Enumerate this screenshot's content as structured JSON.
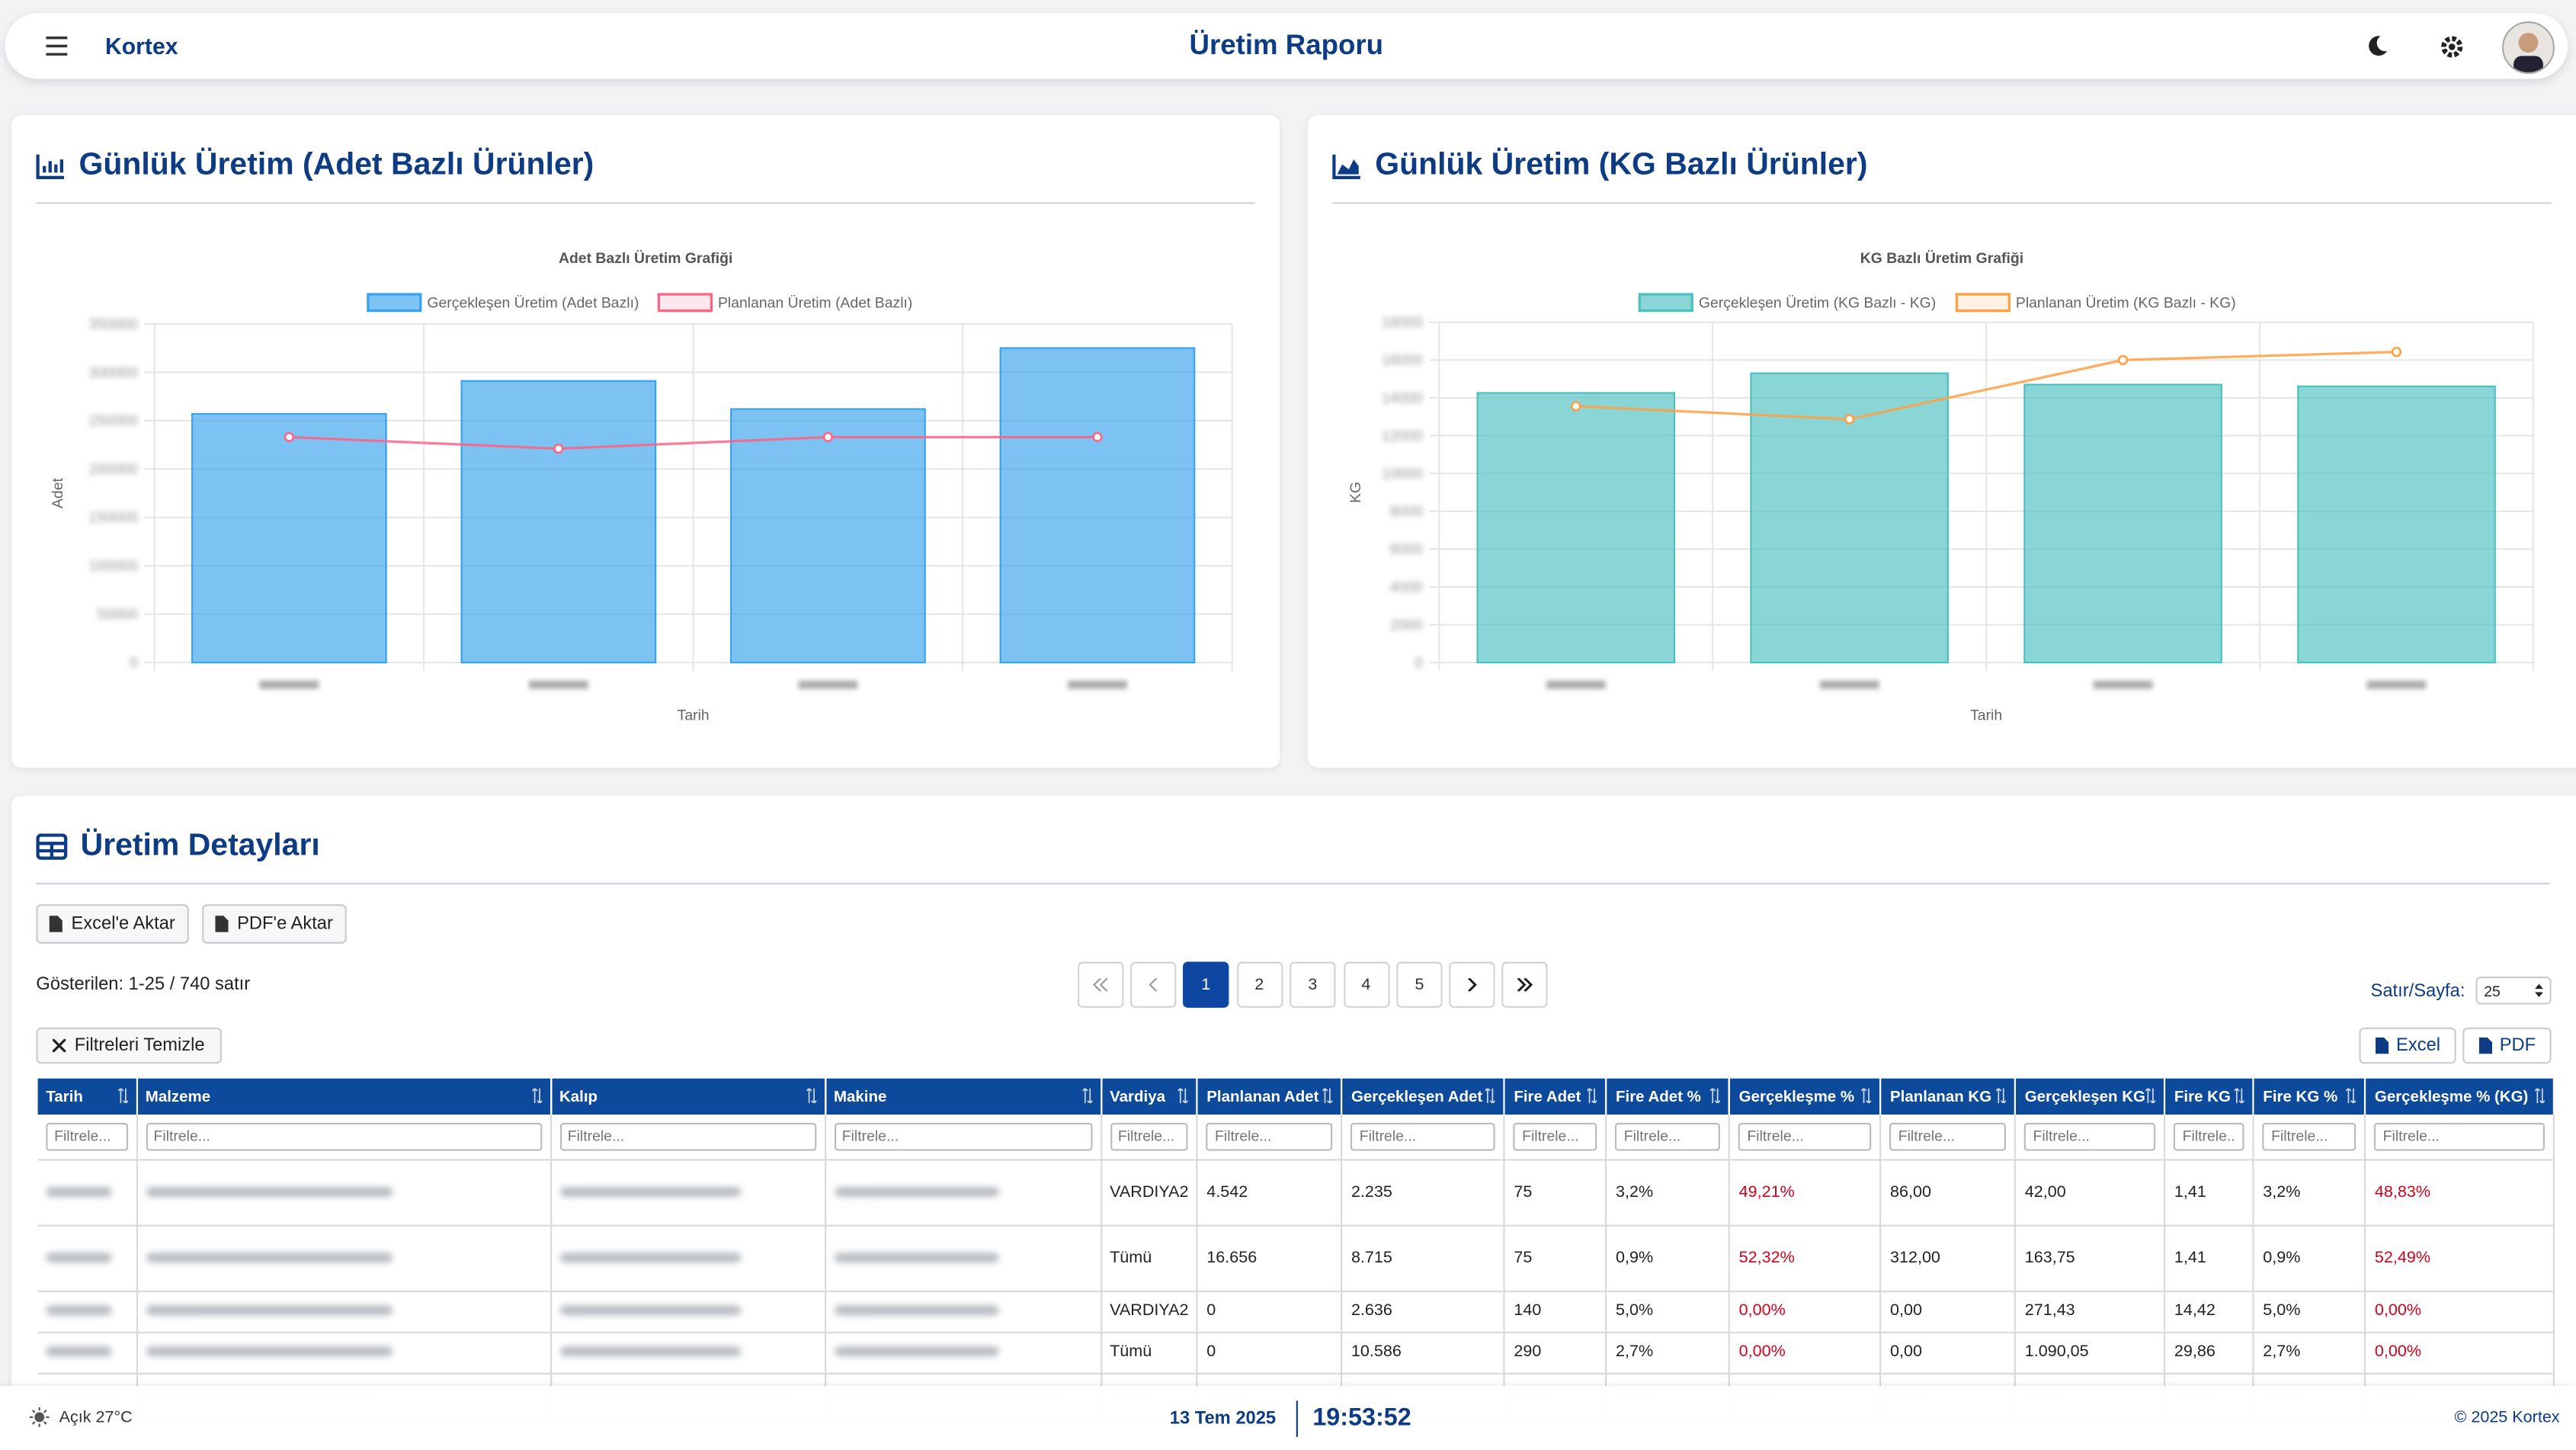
{
  "header": {
    "brand": "Kortex",
    "title": "Üretim Raporu"
  },
  "panels": [
    "Günlük Üretim (Adet Bazlı Ürünler)",
    "Günlük Üretim (KG Bazlı Ürünler)"
  ],
  "chart_data": [
    {
      "type": "bar",
      "title": "Adet Bazlı Üretim Grafiği",
      "x_label": "Tarih",
      "y_label": "Adet",
      "categories": [
        null,
        null,
        null,
        null
      ],
      "series": [
        {
          "name": "Gerçekleşen Üretim (Adet Bazlı)",
          "type": "bar",
          "color": "#36a2eb",
          "values": [
            257000,
            291000,
            262000,
            325000
          ]
        },
        {
          "name": "Planlanan Üretim (Adet Bazlı)",
          "type": "line",
          "color": "#ff6384",
          "values": [
            233000,
            221000,
            233000,
            233000
          ]
        }
      ],
      "ylim": [
        0,
        350000
      ],
      "yticks": [
        0,
        50000,
        100000,
        150000,
        200000,
        250000,
        300000,
        350000
      ],
      "grid": true
    },
    {
      "type": "bar",
      "title": "KG Bazlı Üretim Grafiği",
      "x_label": "Tarih",
      "y_label": "KG",
      "categories": [
        null,
        null,
        null,
        null
      ],
      "series": [
        {
          "name": "Gerçekleşen Üretim (KG Bazlı - KG)",
          "type": "bar",
          "color": "#4bc0c0",
          "values": [
            14260,
            15300,
            14700,
            14610
          ]
        },
        {
          "name": "Planlanan Üretim (KG Bazlı - KG)",
          "type": "line",
          "color": "#ff9f40",
          "values": [
            13560,
            12870,
            16000,
            16430
          ]
        }
      ],
      "ylim": [
        0,
        18000
      ],
      "yticks": [
        0,
        2000,
        4000,
        6000,
        8000,
        10000,
        12000,
        14000,
        16000,
        18000
      ],
      "grid": true
    }
  ],
  "details": {
    "title": "Üretim Detayları",
    "buttons": [
      "Excel'e Aktar",
      "PDF'e Aktar"
    ],
    "shown": "Gösterilen: 1-25 / 740 satır",
    "pages": [
      "1",
      "2",
      "3",
      "4",
      "5"
    ],
    "rows_per_page_label": "Satır/Sayfa:",
    "rows_per_page": "25",
    "clear_filters": "Filtreleri Temizle",
    "export": [
      "Excel",
      "PDF"
    ],
    "filter_placeholder": "Filtrele...",
    "columns": [
      "Tarih",
      "Malzeme",
      "Kalıp",
      "Makine",
      "Vardiya",
      "Planlanan Adet",
      "Gerçekleşen Adet",
      "Fire Adet",
      "Fire Adet %",
      "Gerçekleşme %",
      "Planlanan KG",
      "Gerçekleşen KG",
      "Fire KG",
      "Fire KG %",
      "Gerçekleşme % (KG)"
    ],
    "rows": [
      [
        null,
        null,
        null,
        null,
        "VARDIYA2",
        "4.542",
        "2.235",
        "75",
        "3,2%",
        "49,21%",
        "86,00",
        "42,00",
        "1,41",
        "3,2%",
        "48,83%"
      ],
      [
        null,
        null,
        null,
        null,
        "Tümü",
        "16.656",
        "8.715",
        "75",
        "0,9%",
        "52,32%",
        "312,00",
        "163,75",
        "1,41",
        "0,9%",
        "52,49%"
      ],
      [
        null,
        null,
        null,
        null,
        "VARDIYA2",
        "0",
        "2.636",
        "140",
        "5,0%",
        "0,00%",
        "0,00",
        "271,43",
        "14,42",
        "5,0%",
        "0,00%"
      ],
      [
        null,
        null,
        null,
        null,
        "Tümü",
        "0",
        "10.586",
        "290",
        "2,7%",
        "0,00%",
        "0,00",
        "1.090,05",
        "29,86",
        "2,7%",
        "0,00%"
      ]
    ]
  },
  "footer": {
    "weather": "Açık 27°C",
    "date": "13 Tem 2025",
    "time": "19:53:52",
    "copyright": "© 2025 Kortex"
  }
}
